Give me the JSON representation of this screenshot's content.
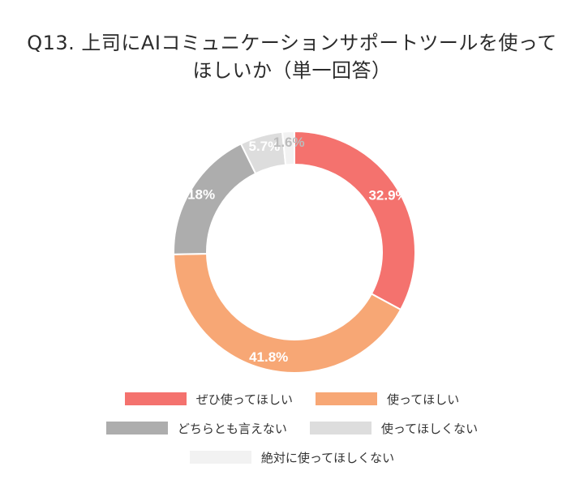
{
  "title_line1": "Q13. 上司にAIコミュニケーションサポートツールを使って",
  "title_line2": "ほしいか（単一回答）",
  "chart_data": {
    "type": "donut",
    "title": "Q13. 上司にAIコミュニケーションサポートツールを使ってほしいか（単一回答）",
    "categories": [
      "ぜひ使ってほしい",
      "使ってほしい",
      "どちらとも言えない",
      "使ってほしくない",
      "絶対に使ってほしくない"
    ],
    "values": [
      32.9,
      41.8,
      18,
      5.7,
      1.6
    ],
    "labels": [
      "32.9%",
      "41.8%",
      "18%",
      "5.7%",
      "1.6%"
    ],
    "colors": [
      "#f4726e",
      "#f7a775",
      "#adadad",
      "#dddddd",
      "#f2f2f2"
    ],
    "label_colors": [
      "#ffffff",
      "#ffffff",
      "#ffffff",
      "#ffffff",
      "#bbbbbb"
    ],
    "legend_position": "bottom",
    "start_angle": "top",
    "direction": "clockwise"
  },
  "legend": [
    {
      "label": "ぜひ使ってほしい",
      "color": "#f4726e"
    },
    {
      "label": "使ってほしい",
      "color": "#f7a775"
    },
    {
      "label": "どちらとも言えない",
      "color": "#adadad"
    },
    {
      "label": "使ってほしくない",
      "color": "#dddddd"
    },
    {
      "label": "絶対に使ってほしくない",
      "color": "#f2f2f2"
    }
  ]
}
